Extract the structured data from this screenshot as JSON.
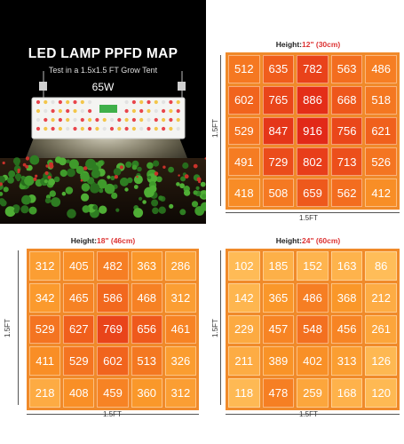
{
  "hero": {
    "title": "LED LAMP PPFD MAP",
    "subtitle": "Test in a 1.5x1.5 FT Grow Tent",
    "wattage": "65W"
  },
  "maps": [
    {
      "height_label": "Height:",
      "height_value": "12\" (30cm)",
      "x_label": "1.5FT",
      "y_label": "1.5FT",
      "rows": [
        [
          512,
          635,
          782,
          563,
          486
        ],
        [
          602,
          765,
          886,
          668,
          518
        ],
        [
          529,
          847,
          916,
          756,
          621
        ],
        [
          491,
          729,
          802,
          713,
          526
        ],
        [
          418,
          508,
          659,
          562,
          412
        ]
      ]
    },
    {
      "height_label": "Height:",
      "height_value": "18\" (46cm)",
      "x_label": "1.5FT",
      "y_label": "1.5FT",
      "rows": [
        [
          312,
          405,
          482,
          363,
          286
        ],
        [
          342,
          465,
          586,
          468,
          312
        ],
        [
          529,
          627,
          769,
          656,
          461
        ],
        [
          411,
          529,
          602,
          513,
          326
        ],
        [
          218,
          408,
          459,
          360,
          312
        ]
      ]
    },
    {
      "height_label": "Height:",
      "height_value": "24\" (60cm)",
      "x_label": "1.5FT",
      "y_label": "1.5FT",
      "rows": [
        [
          102,
          185,
          152,
          163,
          86
        ],
        [
          142,
          365,
          486,
          368,
          212
        ],
        [
          229,
          457,
          548,
          456,
          261
        ],
        [
          211,
          389,
          402,
          313,
          126
        ],
        [
          118,
          478,
          259,
          168,
          120
        ]
      ]
    }
  ],
  "colors": {
    "low": "#ffb347",
    "mid": "#f7871e",
    "high": "#e2371d",
    "accent_red": "#d33333"
  }
}
